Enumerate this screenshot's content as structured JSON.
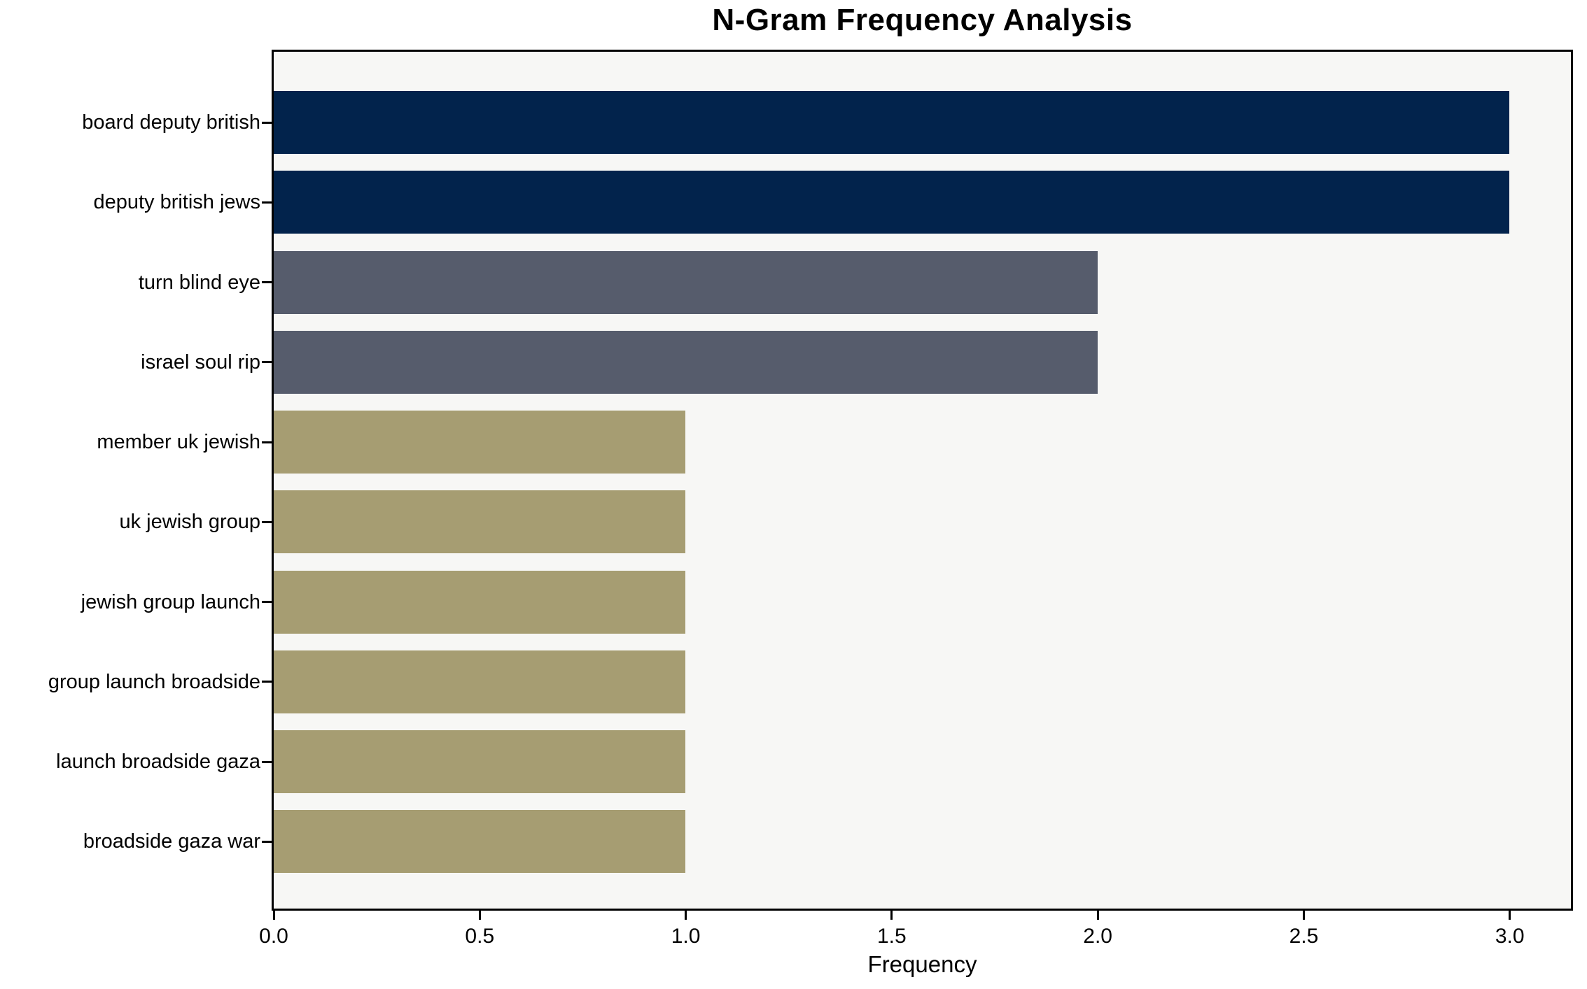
{
  "chart_data": {
    "type": "bar",
    "orientation": "horizontal",
    "title": "N-Gram Frequency Analysis",
    "xlabel": "Frequency",
    "ylabel": "",
    "categories": [
      "board deputy british",
      "deputy british jews",
      "turn blind eye",
      "israel soul rip",
      "member uk jewish",
      "uk jewish group",
      "jewish group launch",
      "group launch broadside",
      "launch broadside gaza",
      "broadside gaza war"
    ],
    "values": [
      3,
      3,
      2,
      2,
      1,
      1,
      1,
      1,
      1,
      1
    ],
    "bar_colors": [
      "#02234c",
      "#02234c",
      "#565c6c",
      "#565c6c",
      "#a69d72",
      "#a69d72",
      "#a69d72",
      "#a69d72",
      "#a69d72",
      "#a69d72"
    ],
    "color_by_value": {
      "3": "#02234c",
      "2": "#565c6c",
      "1": "#a69d72"
    },
    "xlim": [
      0,
      3.15
    ],
    "xticks": [
      {
        "value": 0,
        "label": "0.0"
      },
      {
        "value": 0.5,
        "label": "0.5"
      },
      {
        "value": 1,
        "label": "1.0"
      },
      {
        "value": 1.5,
        "label": "1.5"
      },
      {
        "value": 2,
        "label": "2.0"
      },
      {
        "value": 2.5,
        "label": "2.5"
      },
      {
        "value": 3,
        "label": "3.0"
      }
    ],
    "grid": false,
    "legend": "none",
    "plot_background": "#f7f7f5",
    "figure_background": "#ffffff",
    "axis_color": "#000000"
  }
}
